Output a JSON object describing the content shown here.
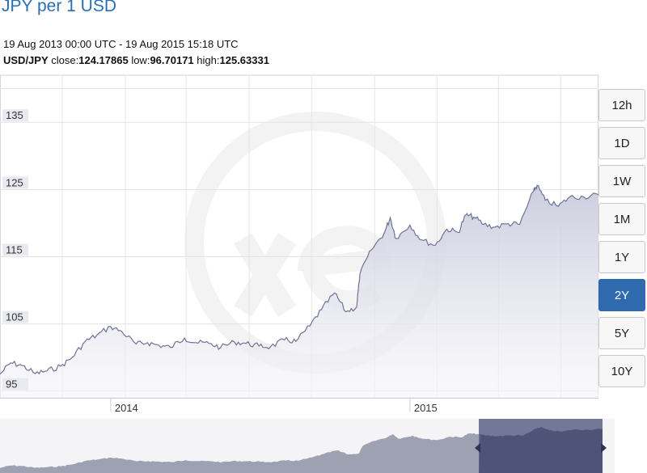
{
  "header": {
    "title": "JPY per 1 USD",
    "date_range": "19 Aug 2013 00:00 UTC - 19 Aug 2015 15:18 UTC",
    "pair": "USD/JPY",
    "close_label": "close:",
    "close_value": "124.17865",
    "low_label": "low:",
    "low_value": "96.70171",
    "high_label": "high:",
    "high_value": "125.63331"
  },
  "period_buttons": [
    {
      "label": "12h",
      "active": false
    },
    {
      "label": "1D",
      "active": false
    },
    {
      "label": "1W",
      "active": false
    },
    {
      "label": "1M",
      "active": false
    },
    {
      "label": "1Y",
      "active": false
    },
    {
      "label": "2Y",
      "active": true
    },
    {
      "label": "5Y",
      "active": false
    },
    {
      "label": "10Y",
      "active": false
    }
  ],
  "colors": {
    "line": "#6e7396",
    "area_top": "#c9cbdc",
    "navigator_fill": "#9ea1b2",
    "navigator_selected": "#5c6187",
    "active_button": "#2e6aad",
    "title": "#2a6fb5"
  },
  "chart_data": {
    "type": "area",
    "title": "JPY per 1 USD",
    "xlabel": "",
    "ylabel": "",
    "x_ticks": [
      "2014",
      "2015"
    ],
    "y_ticks": [
      95,
      105,
      115,
      125,
      135
    ],
    "ylim": [
      94,
      142
    ],
    "xlim": [
      "2013-08-19",
      "2015-08-19"
    ],
    "grid": true,
    "series": [
      {
        "x": [
          "2013-08-19",
          "2013-09-01",
          "2013-09-15",
          "2013-10-01",
          "2013-10-15",
          "2013-11-01",
          "2013-11-15",
          "2013-12-01",
          "2013-12-15",
          "2014-01-01",
          "2014-01-15",
          "2014-02-01",
          "2014-02-15",
          "2014-03-01",
          "2014-03-15",
          "2014-04-01",
          "2014-04-15",
          "2014-05-01",
          "2014-05-15",
          "2014-06-01",
          "2014-06-15",
          "2014-07-01",
          "2014-07-15",
          "2014-08-01",
          "2014-08-15",
          "2014-09-01",
          "2014-09-15",
          "2014-10-01",
          "2014-10-15",
          "2014-10-28",
          "2014-11-01",
          "2014-11-15",
          "2014-12-01",
          "2014-12-08",
          "2014-12-15",
          "2015-01-01",
          "2015-01-15",
          "2015-02-01",
          "2015-02-15",
          "2015-03-01",
          "2015-03-10",
          "2015-03-20",
          "2015-04-01",
          "2015-04-15",
          "2015-05-01",
          "2015-05-15",
          "2015-06-01",
          "2015-06-05",
          "2015-06-15",
          "2015-07-01",
          "2015-07-15",
          "2015-08-01",
          "2015-08-19"
        ],
        "values": [
          97.5,
          99.2,
          98.8,
          97.6,
          98.0,
          98.7,
          100.0,
          102.4,
          103.3,
          104.6,
          103.8,
          102.0,
          102.2,
          101.8,
          101.5,
          102.9,
          102.2,
          102.1,
          101.5,
          102.3,
          102.1,
          101.7,
          101.6,
          102.6,
          102.4,
          104.7,
          107.1,
          109.6,
          106.8,
          107.5,
          112.4,
          116.0,
          118.6,
          120.8,
          117.7,
          119.7,
          117.5,
          116.7,
          119.1,
          118.6,
          121.2,
          120.9,
          119.8,
          119.4,
          119.9,
          119.8,
          124.8,
          125.6,
          123.4,
          122.5,
          123.9,
          123.9,
          124.2
        ]
      }
    ]
  }
}
